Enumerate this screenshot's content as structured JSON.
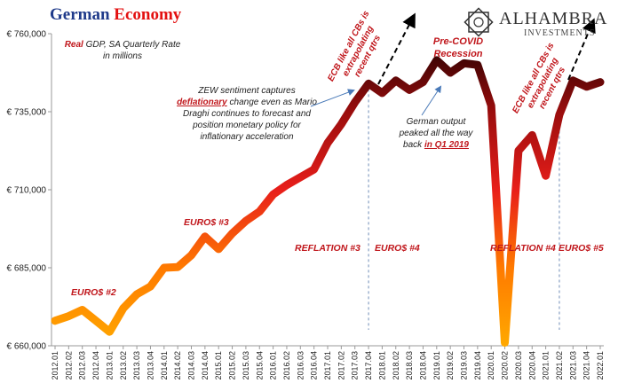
{
  "title": {
    "part1": "German ",
    "part2": "Economy"
  },
  "logo": {
    "name": "ALHAMBRA",
    "sub": "INVESTMENTS"
  },
  "subtitle": {
    "real": "Real",
    "rest": " GDP, SA Quarterly Rate",
    "line2": "in millions"
  },
  "annotations": {
    "zew_1": "ZEW sentiment captures",
    "zew_2a": "deflationary",
    "zew_2b": " change even as Mario",
    "zew_3": "Draghi continues to forecast and",
    "zew_4": "position monetary policy for",
    "zew_5": "inflationary acceleration",
    "german_1": "German output",
    "german_2": "peaked all the way",
    "german_3a": "back ",
    "german_3b": "in Q1 2019",
    "precovid_1": "Pre-COVID",
    "precovid_2": "Recession",
    "ecb1_1": "ECB like all CBs is",
    "ecb1_2": "extrapolating",
    "ecb1_3": "recent qtrs",
    "ecb2_1": "ECB like all CBs is",
    "ecb2_2": "extrapolating",
    "ecb2_3": "recent qtrs"
  },
  "segments": {
    "euro2": "EURO$ #2",
    "euro3": "EURO$ #3",
    "reflation3": "REFLATION #3",
    "euro4": "EURO$ #4",
    "reflation4": "REFLATION #4",
    "euro5": "EURO$ #5"
  },
  "colors": {
    "line_low": "#ff9900",
    "line_mid": "#e31a1a",
    "line_high": "#2a0000",
    "annotation_red": "#c0161b",
    "title_blue": "#1f3a8a",
    "title_red": "#e31010"
  },
  "chart_data": {
    "type": "line",
    "title": "German Economy",
    "ylim": [
      660000,
      760000
    ],
    "yticks": [
      660000,
      685000,
      710000,
      735000,
      760000
    ],
    "ytick_labels": [
      "€ 660,000",
      "€ 685,000",
      "€ 710,000",
      "€ 735,000",
      "€ 760,000"
    ],
    "x": [
      "2012.01",
      "2012.02",
      "2012.03",
      "2012.04",
      "2013.01",
      "2013.02",
      "2013.03",
      "2013.04",
      "2014.01",
      "2014.02",
      "2014.03",
      "2014.04",
      "2015.01",
      "2015.02",
      "2015.03",
      "2015.04",
      "2016.01",
      "2016.02",
      "2016.03",
      "2016.04",
      "2017.01",
      "2017.02",
      "2017.03",
      "2017.04",
      "2018.01",
      "2018.02",
      "2018.03",
      "2018.04",
      "2019.01",
      "2019.02",
      "2019.03",
      "2019.04",
      "2020.01",
      "2020.02",
      "2020.03",
      "2020.04",
      "2021.01",
      "2021.02",
      "2021.03",
      "2021.04",
      "2022.01"
    ],
    "series": [
      {
        "values": [
          668000,
          669500,
          671500,
          668000,
          664500,
          672000,
          676500,
          679000,
          685000,
          685200,
          689000,
          695000,
          691000,
          696000,
          700000,
          703000,
          708500,
          711500,
          714000,
          716500,
          725000,
          731000,
          738000,
          744000,
          741000,
          745000,
          742000,
          744500,
          751500,
          747500,
          750500,
          750000,
          737000,
          661000,
          722500,
          727500,
          714500,
          734000,
          745000,
          743000,
          744500
        ]
      }
    ],
    "dividers_at": [
      "2017.04",
      "2021.02"
    ]
  }
}
